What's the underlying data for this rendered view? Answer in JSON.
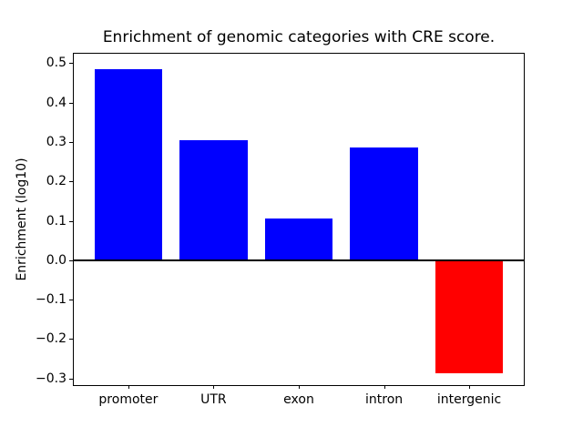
{
  "figure": {
    "background": "#ffffff"
  },
  "chart_data": {
    "type": "bar",
    "title": "Enrichment of genomic categories with CRE score.",
    "xlabel": "",
    "ylabel": "Enrichment (log10)",
    "categories": [
      "promoter",
      "UTR",
      "exon",
      "intron",
      "intergenic"
    ],
    "values": [
      0.485,
      0.305,
      0.107,
      0.285,
      -0.288
    ],
    "positive_color": "#0000ff",
    "negative_color": "#ff0000",
    "axis_color": "#000000",
    "zero_line": true,
    "grid": false,
    "legend": null,
    "bar_width": 0.8,
    "xlim": [
      -0.64,
      4.64
    ],
    "ylim": [
      -0.317,
      0.524
    ],
    "yticks": [
      0.5,
      0.4,
      0.3,
      0.2,
      0.1,
      0.0,
      -0.1,
      -0.2,
      -0.3
    ],
    "ytick_labels": [
      "0.5",
      "0.4",
      "0.3",
      "0.2",
      "0.1",
      "0.0",
      "−0.1",
      "−0.2",
      "−0.3"
    ]
  }
}
